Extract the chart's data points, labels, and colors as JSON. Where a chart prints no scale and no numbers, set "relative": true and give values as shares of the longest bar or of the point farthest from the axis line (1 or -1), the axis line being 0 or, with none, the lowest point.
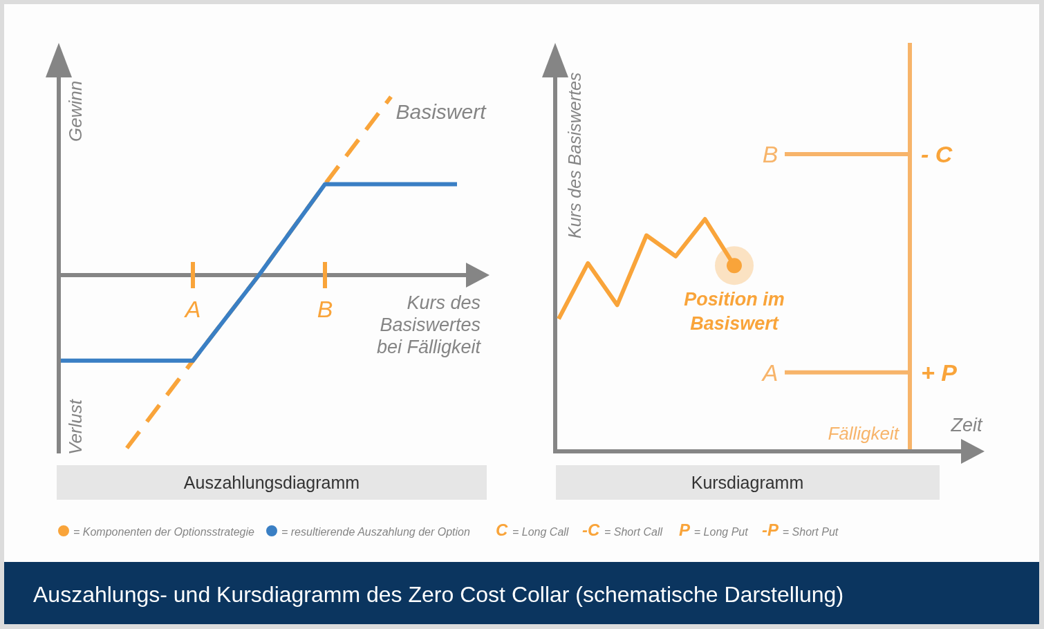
{
  "chart_data": [
    {
      "type": "line",
      "title": "Auszahlungsdiagramm",
      "xlabel": "Kurs des Basiswertes bei Fälligkeit",
      "ylabel": "Gewinn",
      "annotations": [
        "Verlust"
      ],
      "relative": true,
      "categories": [
        null,
        null,
        "A",
        null,
        "B",
        null,
        null
      ],
      "series": [
        {
          "name": "Basiswert",
          "color": "#f9a43a",
          "line_style": "dashed",
          "values": [
            null,
            -0.97,
            -0.48,
            0,
            0.51,
            1,
            null
          ]
        },
        {
          "color": "#3a7fc4",
          "values": [
            -0.48,
            -0.48,
            -0.48,
            0,
            0.51,
            0.51,
            0.51
          ]
        }
      ]
    },
    {
      "type": "line",
      "title": "Kursdiagramm",
      "xlabel": "Zeit",
      "ylabel": "Kurs des Basiswertes",
      "relative": true,
      "categories": [
        null,
        null,
        null,
        null,
        null,
        null,
        null,
        null,
        null,
        null,
        null,
        null,
        null
      ],
      "series": [
        {
          "color": "#f9a43a",
          "values": [
            0.57,
            0.81,
            0.63,
            0.93,
            0.84,
            1,
            0.8,
            null,
            null,
            null,
            null,
            null,
            null
          ]
        }
      ],
      "ref_lines": [
        {
          "axis": "y",
          "value": 1.28,
          "label": "B",
          "color": "#f7b46a"
        },
        {
          "axis": "y",
          "value": 0.34,
          "label": "A",
          "color": "#f7b46a"
        }
      ],
      "annotations": [
        "- C",
        "+ P",
        {
          "text": "Position im Basiswert",
          "y": 0.8
        },
        "Fälligkeit"
      ]
    },
    {
      "type": "other",
      "title": "Auszahlungs- und Kursdiagramm des Zero Cost Collar (schematische Darstellung)",
      "annotations": [
        "= Komponenten der Optionsstrategie",
        "= resultierende Auszahlung der Option",
        "C = Long Call",
        "-C = Short Call",
        "P = Long Put",
        "-P = Short Put"
      ]
    }
  ]
}
